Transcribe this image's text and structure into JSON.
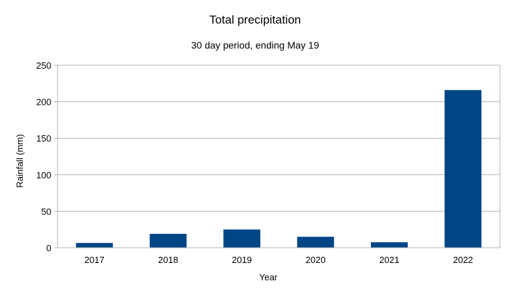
{
  "chart_data": {
    "type": "bar",
    "title": "Total precipitation",
    "subtitle": "30 day period, ending May 19",
    "xlabel": "Year",
    "ylabel": "Rainfall (mm)",
    "categories": [
      "2017",
      "2018",
      "2019",
      "2020",
      "2021",
      "2022"
    ],
    "values": [
      6.5,
      19,
      25,
      15,
      7.5,
      216
    ],
    "ylim": [
      0,
      250
    ],
    "yticks": [
      0,
      50,
      100,
      150,
      200,
      250
    ],
    "grid": true,
    "legend": "none",
    "bar_color": "#004586",
    "grid_color": "#b3b3b3"
  }
}
